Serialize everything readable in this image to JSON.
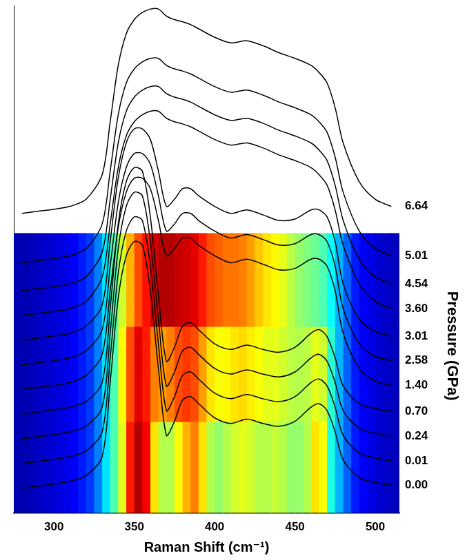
{
  "chart_data": {
    "type": "line",
    "xlabel": "Raman Shift (cm⁻¹)",
    "y2label": "Pressure (GPa)",
    "x": [
      280,
      290,
      300,
      310,
      320,
      330,
      335,
      340,
      345,
      350,
      355,
      360,
      365,
      370,
      375,
      380,
      385,
      390,
      400,
      410,
      420,
      430,
      440,
      450,
      460,
      465,
      470,
      475,
      480,
      490,
      500,
      510
    ],
    "xlim": [
      275,
      515
    ],
    "xticks": [
      300,
      350,
      400,
      450,
      500
    ],
    "ylim": [
      0,
      720
    ],
    "tick_labels": "x",
    "grid": false,
    "marker": "none",
    "line_style": "solid",
    "color": "#000000",
    "series": [
      {
        "name": "0.00",
        "values": [
          35,
          38,
          41,
          45,
          53,
          80,
          185,
          305,
          365,
          385,
          380,
          315,
          205,
          110,
          130,
          160,
          165,
          155,
          135,
          127,
          133,
          127,
          123,
          130,
          150,
          155,
          145,
          115,
          75,
          50,
          43,
          39
        ]
      },
      {
        "name": "0.01",
        "values": [
          70,
          73,
          76,
          80,
          88,
          115,
          220,
          340,
          400,
          420,
          415,
          350,
          240,
          145,
          165,
          195,
          200,
          190,
          170,
          162,
          168,
          162,
          158,
          165,
          185,
          190,
          180,
          150,
          110,
          85,
          78,
          74
        ]
      },
      {
        "name": "0.24",
        "values": [
          105,
          108,
          111,
          115,
          123,
          150,
          255,
          375,
          435,
          455,
          450,
          385,
          275,
          180,
          200,
          230,
          235,
          225,
          205,
          197,
          203,
          197,
          193,
          200,
          220,
          225,
          215,
          185,
          145,
          120,
          113,
          109
        ]
      },
      {
        "name": "0.70",
        "values": [
          140,
          143,
          146,
          150,
          158,
          185,
          290,
          410,
          470,
          490,
          485,
          420,
          310,
          215,
          235,
          265,
          270,
          260,
          240,
          232,
          238,
          232,
          228,
          235,
          255,
          260,
          250,
          220,
          180,
          155,
          148,
          144
        ]
      },
      {
        "name": "1.40",
        "values": [
          175,
          178,
          181,
          185,
          195,
          225,
          315,
          405,
          455,
          475,
          475,
          460,
          415,
          365,
          375,
          390,
          390,
          380,
          365,
          355,
          360,
          353,
          345,
          347,
          360,
          360,
          350,
          315,
          255,
          205,
          187,
          181
        ]
      },
      {
        "name": "2.58",
        "values": [
          210,
          213,
          216,
          220,
          230,
          260,
          350,
          440,
          490,
          510,
          510,
          495,
          450,
          400,
          410,
          425,
          425,
          415,
          400,
          390,
          395,
          388,
          380,
          382,
          395,
          395,
          385,
          350,
          290,
          240,
          222,
          216
        ]
      },
      {
        "name": "3.01",
        "values": [
          245,
          248,
          251,
          255,
          265,
          295,
          385,
          475,
          525,
          545,
          545,
          530,
          485,
          435,
          445,
          460,
          460,
          450,
          435,
          425,
          430,
          423,
          415,
          417,
          430,
          430,
          420,
          385,
          325,
          275,
          257,
          251
        ]
      },
      {
        "name": "3.60",
        "values": [
          280,
          283,
          286,
          290,
          300,
          335,
          410,
          490,
          535,
          555,
          565,
          570,
          570,
          560,
          555,
          552,
          548,
          542,
          530,
          522,
          525,
          518,
          508,
          500,
          490,
          480,
          465,
          430,
          380,
          325,
          300,
          290
        ]
      },
      {
        "name": "4.54",
        "values": [
          315,
          318,
          321,
          325,
          335,
          370,
          445,
          525,
          570,
          590,
          600,
          605,
          605,
          595,
          590,
          587,
          583,
          577,
          565,
          557,
          560,
          553,
          543,
          535,
          525,
          515,
          500,
          465,
          415,
          360,
          335,
          325
        ]
      },
      {
        "name": "5.01",
        "values": [
          355,
          358,
          361,
          365,
          375,
          410,
          485,
          565,
          610,
          630,
          640,
          645,
          645,
          635,
          630,
          627,
          623,
          617,
          605,
          597,
          600,
          593,
          583,
          575,
          565,
          555,
          540,
          505,
          455,
          400,
          375,
          365
        ]
      },
      {
        "name": "6.64",
        "values": [
          425,
          428,
          431,
          435,
          445,
          480,
          555,
          635,
          680,
          700,
          710,
          715,
          715,
          705,
          700,
          697,
          693,
          687,
          675,
          667,
          670,
          663,
          653,
          645,
          635,
          625,
          610,
          575,
          525,
          470,
          445,
          435
        ]
      }
    ],
    "heatmap": {
      "x": [
        275,
        280,
        285,
        290,
        295,
        300,
        305,
        310,
        315,
        320,
        325,
        330,
        335,
        340,
        345,
        350,
        355,
        360,
        365,
        370,
        375,
        380,
        385,
        390,
        395,
        400,
        405,
        410,
        415,
        420,
        425,
        430,
        435,
        440,
        445,
        450,
        455,
        460,
        465,
        470,
        475,
        480,
        485,
        490,
        495,
        500,
        505,
        510,
        515
      ],
      "y": [
        0,
        130,
        265,
        397
      ],
      "zlim": [
        0,
        1
      ],
      "cells": [
        [
          0.05,
          0.05,
          0.06,
          0.07,
          0.08,
          0.09,
          0.1,
          0.12,
          0.15,
          0.18,
          0.25,
          0.35,
          0.45,
          0.6,
          0.85,
          0.95,
          0.88,
          0.65,
          0.55,
          0.55,
          0.62,
          0.7,
          0.75,
          0.65,
          0.55,
          0.52,
          0.55,
          0.58,
          0.6,
          0.58,
          0.55,
          0.55,
          0.57,
          0.55,
          0.52,
          0.52,
          0.55,
          0.65,
          0.62,
          0.4,
          0.3,
          0.22,
          0.15,
          0.12,
          0.1,
          0.08,
          0.07,
          0.06
        ],
        [
          0.05,
          0.05,
          0.06,
          0.07,
          0.08,
          0.09,
          0.1,
          0.12,
          0.15,
          0.18,
          0.25,
          0.35,
          0.45,
          0.62,
          0.8,
          0.9,
          0.85,
          0.75,
          0.72,
          0.75,
          0.8,
          0.82,
          0.8,
          0.72,
          0.65,
          0.62,
          0.63,
          0.65,
          0.66,
          0.64,
          0.62,
          0.6,
          0.6,
          0.58,
          0.56,
          0.55,
          0.56,
          0.6,
          0.58,
          0.42,
          0.3,
          0.22,
          0.15,
          0.12,
          0.1,
          0.08,
          0.07,
          0.06
        ],
        [
          0.05,
          0.05,
          0.06,
          0.07,
          0.08,
          0.09,
          0.1,
          0.12,
          0.15,
          0.18,
          0.25,
          0.35,
          0.45,
          0.58,
          0.7,
          0.8,
          0.86,
          0.92,
          0.95,
          0.95,
          0.93,
          0.92,
          0.9,
          0.85,
          0.8,
          0.78,
          0.76,
          0.76,
          0.75,
          0.72,
          0.68,
          0.65,
          0.63,
          0.6,
          0.56,
          0.52,
          0.5,
          0.48,
          0.45,
          0.38,
          0.3,
          0.22,
          0.15,
          0.12,
          0.1,
          0.08,
          0.07,
          0.06
        ]
      ]
    }
  }
}
